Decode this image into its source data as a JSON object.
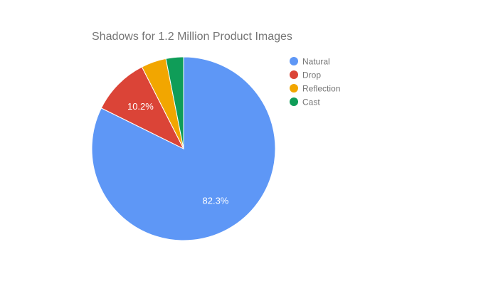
{
  "chart_data": {
    "type": "pie",
    "title": "Shadows for 1.2 Million Product Images",
    "legend_position": "right",
    "slices": [
      {
        "name": "Natural",
        "value": 82.3,
        "color": "#5e97f6",
        "label": "82.3%"
      },
      {
        "name": "Drop",
        "value": 10.2,
        "color": "#db4437",
        "label": "10.2%"
      },
      {
        "name": "Reflection",
        "value": 4.4,
        "color": "#f2a600",
        "label": ""
      },
      {
        "name": "Cast",
        "value": 3.1,
        "color": "#0f9d58",
        "label": ""
      }
    ]
  }
}
